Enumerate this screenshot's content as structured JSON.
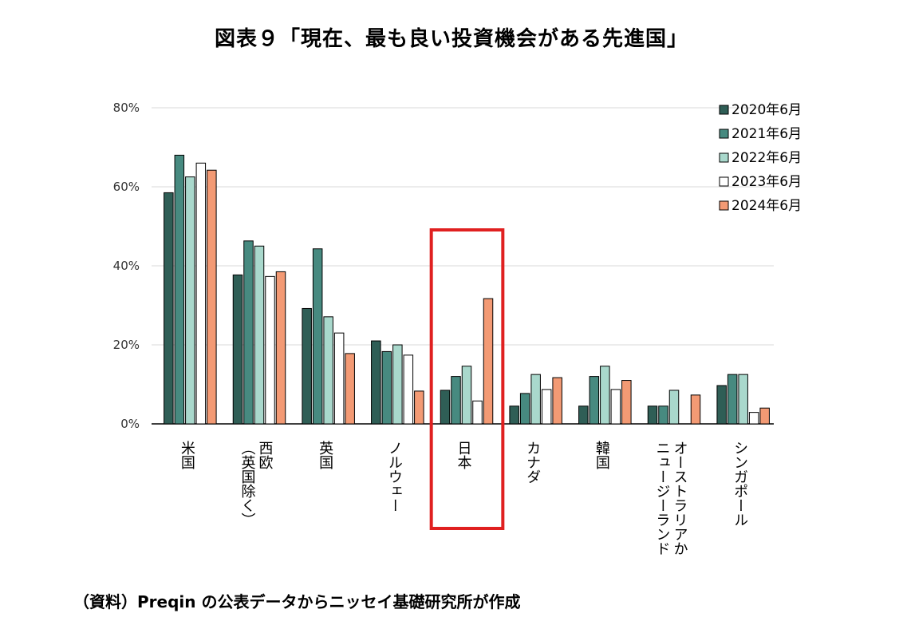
{
  "title": "図表９「現在、最も良い投資機会がある先進国」",
  "source": "（資料）Preqin の公表データからニッセイ基礎研究所が作成",
  "chart_data": {
    "type": "bar",
    "categories": [
      "米国",
      "西欧（英国除く）",
      "英国",
      "ノルウェー",
      "日本",
      "カナダ",
      "韓国",
      "オーストラリアかニュージーランド",
      "シンガポール"
    ],
    "category_lines": [
      [
        "米国"
      ],
      [
        "西欧",
        "（英国除く）"
      ],
      [
        "英国"
      ],
      [
        "ノルウェー"
      ],
      [
        "日本"
      ],
      [
        "カナダ"
      ],
      [
        "韓国"
      ],
      [
        "オーストラリアか",
        "ニュージーランド"
      ],
      [
        "シンガポール"
      ]
    ],
    "series": [
      {
        "name": "2020年6月",
        "color": "#2f5e56",
        "values": [
          58.5,
          37.7,
          29.2,
          21.0,
          8.5,
          4.5,
          4.5,
          4.5,
          9.7
        ]
      },
      {
        "name": "2021年6月",
        "color": "#478a80",
        "values": [
          68.0,
          46.3,
          44.3,
          18.3,
          12.0,
          7.7,
          12.0,
          4.5,
          12.5
        ]
      },
      {
        "name": "2022年6月",
        "color": "#a9d8cc",
        "values": [
          62.5,
          45.0,
          27.1,
          20.0,
          14.6,
          12.5,
          14.6,
          8.5,
          12.5
        ]
      },
      {
        "name": "2023年6月",
        "color": "#ffffff",
        "values": [
          66.0,
          37.3,
          23.0,
          17.4,
          5.8,
          8.7,
          8.7,
          0,
          2.9
        ]
      },
      {
        "name": "2024年6月",
        "color": "#f39a74",
        "values": [
          64.2,
          38.5,
          17.8,
          8.3,
          31.7,
          11.7,
          11.0,
          7.3,
          4.0
        ]
      }
    ],
    "yticks": [
      "0%",
      "20%",
      "40%",
      "60%",
      "80%"
    ],
    "ylim": [
      0,
      80
    ],
    "grid": true,
    "legend_position": "top-right",
    "highlight_category": "日本",
    "highlight_color": "#e02020"
  }
}
